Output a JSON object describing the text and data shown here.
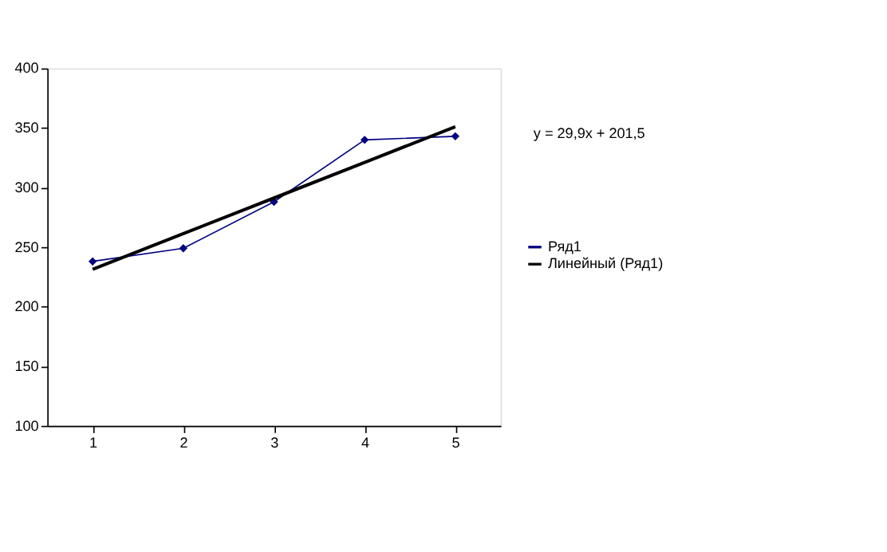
{
  "chart_data": {
    "type": "line",
    "categories": [
      "1",
      "2",
      "3",
      "4",
      "5"
    ],
    "series": [
      {
        "name": "Ряд1",
        "color": "#000080",
        "values": [
          238,
          249,
          288,
          340,
          343
        ],
        "marker": "diamond"
      },
      {
        "name": "Линейный (Ряд1)",
        "color": "#000000",
        "values": [
          231.4,
          261.3,
          291.2,
          321.1,
          351.0
        ],
        "marker": "none"
      }
    ],
    "ylim": [
      100,
      400
    ],
    "yticks": [
      100,
      150,
      200,
      250,
      300,
      350,
      400
    ],
    "grid": false,
    "legend": "right",
    "annotations": [
      "y = 29,9x + 201,5"
    ]
  }
}
